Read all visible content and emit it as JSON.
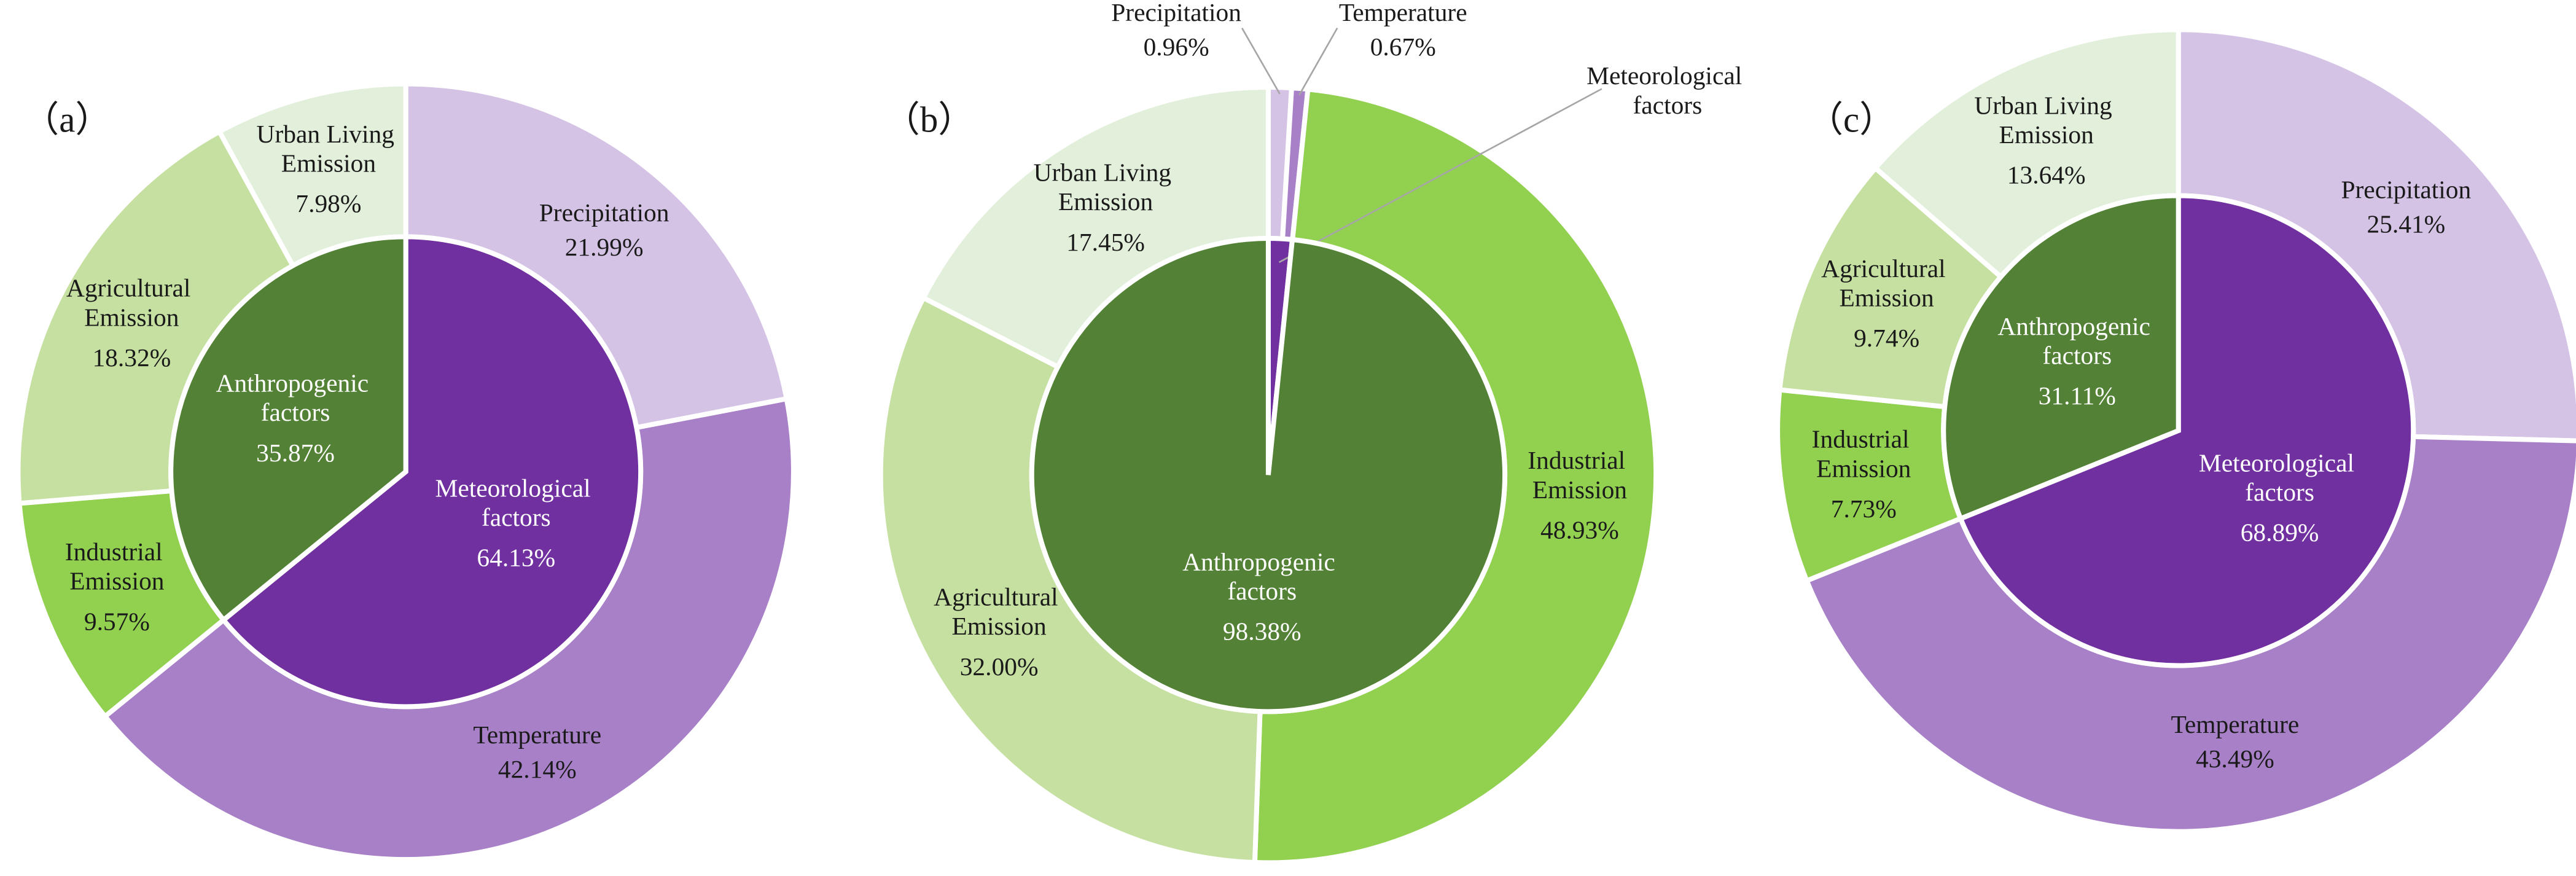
{
  "chart_data": [
    {
      "type": "sunburst",
      "label": "（a）",
      "inner": {
        "categories": [
          "Meteorological factors",
          "Anthropogenic factors"
        ],
        "values": [
          64.13,
          35.87
        ],
        "value_labels": [
          "64.13%",
          "35.87%"
        ],
        "colors": [
          "#7030a0",
          "#538135"
        ]
      },
      "outer": {
        "categories": [
          "Precipitation",
          "Temperature",
          "Industrial Emission",
          "Agricultural Emission",
          "Urban Living Emission"
        ],
        "values": [
          21.99,
          42.14,
          9.57,
          18.32,
          7.98
        ],
        "value_labels": [
          "21.99%",
          "42.14%",
          "9.57%",
          "18.32%",
          "7.98%"
        ],
        "colors": [
          "#d5c3e6",
          "#a880c8",
          "#92d050",
          "#c5e0a0",
          "#e2efda"
        ]
      }
    },
    {
      "type": "sunburst",
      "label": "（b）",
      "inner": {
        "categories": [
          "Meteorological factors",
          "Anthropogenic factors"
        ],
        "values": [
          1.62,
          98.38
        ],
        "value_labels": [
          null,
          "98.38%"
        ],
        "colors": [
          "#7030a0",
          "#538135"
        ]
      },
      "outer": {
        "categories": [
          "Precipitation",
          "Temperature",
          "Industrial Emission",
          "Agricultural Emission",
          "Urban Living Emission"
        ],
        "values": [
          0.96,
          0.67,
          48.93,
          32.0,
          17.45
        ],
        "value_labels": [
          "0.96%",
          "0.67%",
          "48.93%",
          "32.00%",
          "17.45%"
        ],
        "colors": [
          "#d5c3e6",
          "#a880c8",
          "#92d050",
          "#c5e0a0",
          "#e2efda"
        ]
      }
    },
    {
      "type": "sunburst",
      "label": "（c）",
      "inner": {
        "categories": [
          "Meteorological factors",
          "Anthropogenic factors"
        ],
        "values": [
          68.89,
          31.11
        ],
        "value_labels": [
          "68.89%",
          "31.11%"
        ],
        "colors": [
          "#7030a0",
          "#538135"
        ]
      },
      "outer": {
        "categories": [
          "Precipitation",
          "Temperature",
          "Industrial Emission",
          "Agricultural Emission",
          "Urban Living Emission"
        ],
        "values": [
          25.41,
          43.49,
          7.73,
          9.74,
          13.64
        ],
        "value_labels": [
          "25.41%",
          "43.49%",
          "7.73%",
          "9.74%",
          "13.64%"
        ],
        "colors": [
          "#d5c3e6",
          "#a880c8",
          "#92d050",
          "#c5e0a0",
          "#e2efda"
        ]
      }
    }
  ]
}
